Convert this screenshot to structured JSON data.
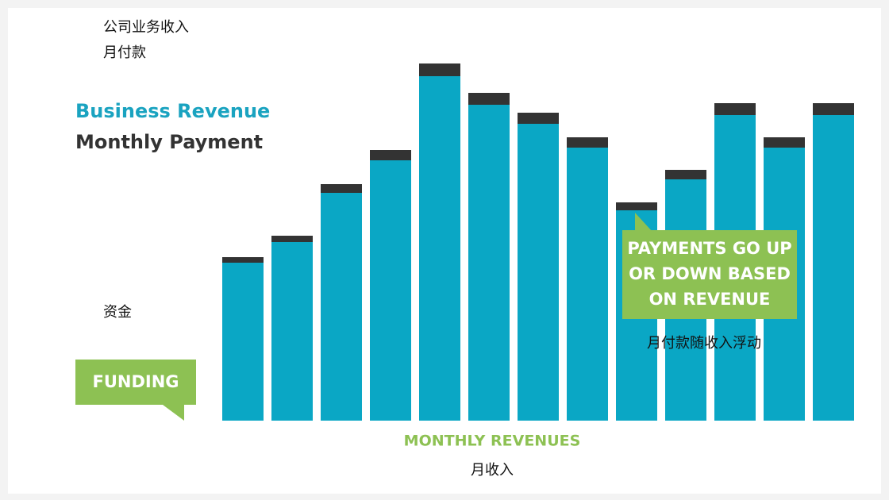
{
  "chart_data": {
    "type": "bar",
    "stacked": true,
    "title_cn": "公司业务收入",
    "subtitle_cn": "月付款",
    "series": [
      {
        "name": "Business Revenue",
        "color": "#0aa7c5",
        "values": [
          199,
          225,
          287,
          328,
          434,
          398,
          374,
          344,
          265,
          304,
          385,
          344,
          385
        ]
      },
      {
        "name": "Monthly Payment",
        "color": "#333333",
        "values": [
          7,
          8,
          11,
          13,
          16,
          15,
          14,
          13,
          10,
          12,
          15,
          13,
          15
        ]
      }
    ],
    "x_label": "MONTHLY REVENUES",
    "x_label_cn": "月收入",
    "annotations": {
      "funding": {
        "text": "FUNDING",
        "text_cn": "资金",
        "color": "#8dc153"
      },
      "payments": {
        "lines": [
          "PAYMENTS GO UP",
          "OR DOWN BASED",
          "ON REVENUE"
        ],
        "text_cn": "月付款随收入浮动",
        "color": "#8dc153"
      }
    }
  }
}
